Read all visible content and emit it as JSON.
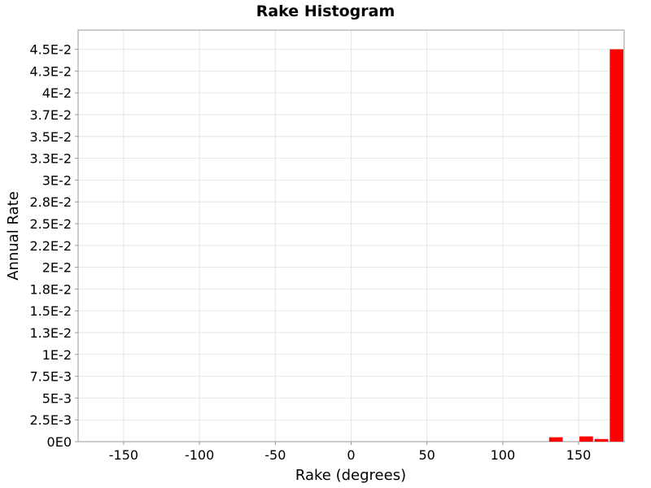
{
  "chart_data": {
    "type": "bar",
    "title": "Rake Histogram",
    "xlabel": "Rake (degrees)",
    "ylabel": "Annual Rate",
    "xlim": [
      -180,
      180
    ],
    "ylim": [
      0,
      0.0472
    ],
    "grid": true,
    "legend": "none",
    "bar_color": "#ff0000",
    "x_ticks": [
      {
        "value": -150,
        "label": "-150"
      },
      {
        "value": -100,
        "label": "-100"
      },
      {
        "value": -50,
        "label": "-50"
      },
      {
        "value": 0,
        "label": "0"
      },
      {
        "value": 50,
        "label": "50"
      },
      {
        "value": 100,
        "label": "100"
      },
      {
        "value": 150,
        "label": "150"
      }
    ],
    "y_ticks": [
      {
        "value": 0,
        "label": "0E0"
      },
      {
        "value": 0.0025,
        "label": "2.5E-3"
      },
      {
        "value": 0.005,
        "label": "5E-3"
      },
      {
        "value": 0.0075,
        "label": "7.5E-3"
      },
      {
        "value": 0.01,
        "label": "1E-2"
      },
      {
        "value": 0.0125,
        "label": "1.3E-2"
      },
      {
        "value": 0.015,
        "label": "1.5E-2"
      },
      {
        "value": 0.0175,
        "label": "1.8E-2"
      },
      {
        "value": 0.02,
        "label": "2E-2"
      },
      {
        "value": 0.0225,
        "label": "2.2E-2"
      },
      {
        "value": 0.025,
        "label": "2.5E-2"
      },
      {
        "value": 0.0275,
        "label": "2.8E-2"
      },
      {
        "value": 0.03,
        "label": "3E-2"
      },
      {
        "value": 0.0325,
        "label": "3.3E-2"
      },
      {
        "value": 0.035,
        "label": "3.5E-2"
      },
      {
        "value": 0.0375,
        "label": "3.7E-2"
      },
      {
        "value": 0.04,
        "label": "4E-2"
      },
      {
        "value": 0.0425,
        "label": "4.3E-2"
      },
      {
        "value": 0.045,
        "label": "4.5E-2"
      }
    ],
    "bin_width": 10,
    "bins": [
      {
        "x": 135,
        "y": 0.0005
      },
      {
        "x": 155,
        "y": 0.0006
      },
      {
        "x": 165,
        "y": 0.0003
      },
      {
        "x": 175,
        "y": 0.045
      }
    ]
  }
}
